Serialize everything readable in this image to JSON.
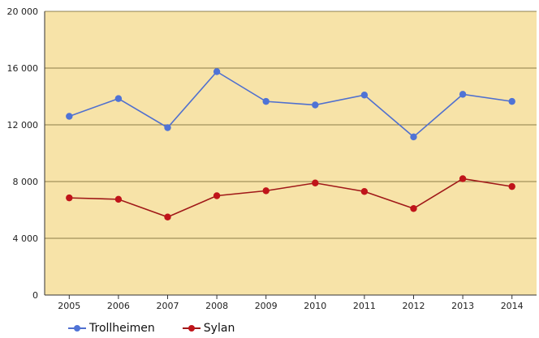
{
  "chart_data": {
    "type": "line",
    "title": "",
    "xlabel": "",
    "ylabel": "",
    "categories": [
      "2005",
      "2006",
      "2007",
      "2008",
      "2009",
      "2010",
      "2011",
      "2012",
      "2013",
      "2014"
    ],
    "ylim": [
      0,
      20000
    ],
    "yticks": [
      0,
      4000,
      8000,
      12000,
      16000,
      20000
    ],
    "ytick_labels": [
      "0",
      "4 000",
      "8 000",
      "12 000",
      "16 000",
      "20 000"
    ],
    "grid": true,
    "legend_position": "bottom-left",
    "series": [
      {
        "name": "Trollheimen",
        "color": "#4f6fcf",
        "marker_color": "#4f73d6",
        "values": [
          12600,
          13850,
          11800,
          15750,
          13650,
          13400,
          14100,
          11150,
          14150,
          13650
        ]
      },
      {
        "name": "Sylan",
        "color": "#a01818",
        "marker_color": "#c0141a",
        "values": [
          6850,
          6750,
          5500,
          7000,
          7350,
          7900,
          7300,
          6100,
          8200,
          7650
        ]
      }
    ]
  },
  "style": {
    "plot_background": "#f7e3a8",
    "grid_color": "#6b5a2a",
    "axis_color": "#333333"
  }
}
